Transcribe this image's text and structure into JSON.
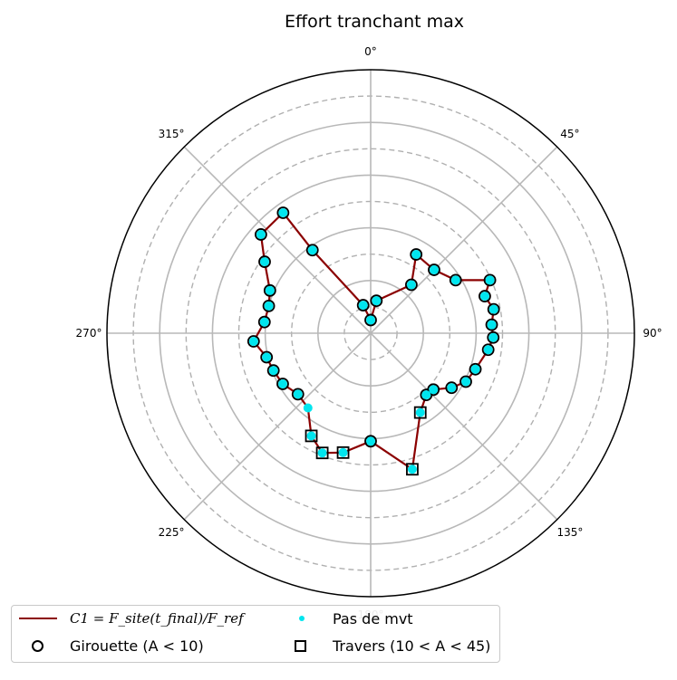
{
  "chart_data": {
    "type": "scatter",
    "projection": "polar",
    "title": "Effort tranchant max",
    "theta_direction": "clockwise",
    "theta_zero": "north",
    "theta_tick_labels": [
      "0°",
      "45°",
      "90°",
      "135°",
      "180°",
      "225°",
      "270°",
      "315°"
    ],
    "r_grid": {
      "solid": [
        0.4,
        0.8,
        1.2,
        1.6,
        2.0
      ],
      "dashed": [
        0.2,
        0.6,
        1.0,
        1.4,
        1.8
      ],
      "rmax": 2.0
    },
    "r_tick_labels_shown": false,
    "grid": true,
    "legend_placement": "bottom-left",
    "series": [
      {
        "name": "C1 = F_site(t_final)/F_ref",
        "kind": "line",
        "color": "#8b0000",
        "points": [
          {
            "theta": 0,
            "r": 0.1
          },
          {
            "theta": 10,
            "r": 0.25
          },
          {
            "theta": 40,
            "r": 0.48
          },
          {
            "theta": 30,
            "r": 0.69
          },
          {
            "theta": 45,
            "r": 0.68
          },
          {
            "theta": 58,
            "r": 0.76
          },
          {
            "theta": 66,
            "r": 0.99
          },
          {
            "theta": 72,
            "r": 0.91
          },
          {
            "theta": 79,
            "r": 0.95
          },
          {
            "theta": 86,
            "r": 0.92
          },
          {
            "theta": 92,
            "r": 0.93
          },
          {
            "theta": 98,
            "r": 0.9
          },
          {
            "theta": 109,
            "r": 0.84
          },
          {
            "theta": 117,
            "r": 0.81
          },
          {
            "theta": 124,
            "r": 0.74
          },
          {
            "theta": 132,
            "r": 0.64
          },
          {
            "theta": 138,
            "r": 0.63
          },
          {
            "theta": 148,
            "r": 0.71
          },
          {
            "theta": 163,
            "r": 1.08
          },
          {
            "theta": 180,
            "r": 0.82
          },
          {
            "theta": 193,
            "r": 0.93
          },
          {
            "theta": 202,
            "r": 0.98
          },
          {
            "theta": 210,
            "r": 0.9
          },
          {
            "theta": 220,
            "r": 0.74
          },
          {
            "theta": 230,
            "r": 0.72
          },
          {
            "theta": 240,
            "r": 0.77
          },
          {
            "theta": 249,
            "r": 0.79
          },
          {
            "theta": 257,
            "r": 0.81
          },
          {
            "theta": 266,
            "r": 0.89
          },
          {
            "theta": 276,
            "r": 0.81
          },
          {
            "theta": 285,
            "r": 0.8
          },
          {
            "theta": 293,
            "r": 0.83
          },
          {
            "theta": 304,
            "r": 0.97
          },
          {
            "theta": 312,
            "r": 1.12
          },
          {
            "theta": 324,
            "r": 1.13
          },
          {
            "theta": 325,
            "r": 0.77
          },
          {
            "theta": 345,
            "r": 0.22
          },
          {
            "theta": 0,
            "r": 0.1
          }
        ]
      },
      {
        "name": "Pas de mvt",
        "kind": "marker",
        "color": "#00e5ee",
        "points": [
          {
            "theta": 0,
            "r": 0.1
          },
          {
            "theta": 10,
            "r": 0.25
          },
          {
            "theta": 40,
            "r": 0.48
          },
          {
            "theta": 30,
            "r": 0.69
          },
          {
            "theta": 45,
            "r": 0.68
          },
          {
            "theta": 58,
            "r": 0.76
          },
          {
            "theta": 66,
            "r": 0.99
          },
          {
            "theta": 72,
            "r": 0.91
          },
          {
            "theta": 79,
            "r": 0.95
          },
          {
            "theta": 86,
            "r": 0.92
          },
          {
            "theta": 92,
            "r": 0.93
          },
          {
            "theta": 98,
            "r": 0.9
          },
          {
            "theta": 109,
            "r": 0.84
          },
          {
            "theta": 117,
            "r": 0.81
          },
          {
            "theta": 124,
            "r": 0.74
          },
          {
            "theta": 132,
            "r": 0.64
          },
          {
            "theta": 138,
            "r": 0.63
          },
          {
            "theta": 148,
            "r": 0.71
          },
          {
            "theta": 163,
            "r": 1.08
          },
          {
            "theta": 180,
            "r": 0.82
          },
          {
            "theta": 193,
            "r": 0.93
          },
          {
            "theta": 202,
            "r": 0.98
          },
          {
            "theta": 210,
            "r": 0.9
          },
          {
            "theta": 220,
            "r": 0.74
          },
          {
            "theta": 230,
            "r": 0.72
          },
          {
            "theta": 240,
            "r": 0.77
          },
          {
            "theta": 249,
            "r": 0.79
          },
          {
            "theta": 257,
            "r": 0.81
          },
          {
            "theta": 266,
            "r": 0.89
          },
          {
            "theta": 276,
            "r": 0.81
          },
          {
            "theta": 285,
            "r": 0.8
          },
          {
            "theta": 293,
            "r": 0.83
          },
          {
            "theta": 304,
            "r": 0.97
          },
          {
            "theta": 312,
            "r": 1.12
          },
          {
            "theta": 324,
            "r": 1.13
          },
          {
            "theta": 325,
            "r": 0.77
          },
          {
            "theta": 345,
            "r": 0.22
          }
        ]
      },
      {
        "name": "Girouette (A < 10)",
        "kind": "circle-outline",
        "color": "#000000",
        "points": [
          {
            "theta": 0,
            "r": 0.1
          },
          {
            "theta": 10,
            "r": 0.25
          },
          {
            "theta": 40,
            "r": 0.48
          },
          {
            "theta": 30,
            "r": 0.69
          },
          {
            "theta": 45,
            "r": 0.68
          },
          {
            "theta": 58,
            "r": 0.76
          },
          {
            "theta": 66,
            "r": 0.99
          },
          {
            "theta": 72,
            "r": 0.91
          },
          {
            "theta": 79,
            "r": 0.95
          },
          {
            "theta": 86,
            "r": 0.92
          },
          {
            "theta": 92,
            "r": 0.93
          },
          {
            "theta": 98,
            "r": 0.9
          },
          {
            "theta": 109,
            "r": 0.84
          },
          {
            "theta": 117,
            "r": 0.81
          },
          {
            "theta": 124,
            "r": 0.74
          },
          {
            "theta": 132,
            "r": 0.64
          },
          {
            "theta": 138,
            "r": 0.63
          },
          {
            "theta": 180,
            "r": 0.82
          },
          {
            "theta": 230,
            "r": 0.72
          },
          {
            "theta": 240,
            "r": 0.77
          },
          {
            "theta": 249,
            "r": 0.79
          },
          {
            "theta": 257,
            "r": 0.81
          },
          {
            "theta": 266,
            "r": 0.89
          },
          {
            "theta": 276,
            "r": 0.81
          },
          {
            "theta": 285,
            "r": 0.8
          },
          {
            "theta": 293,
            "r": 0.83
          },
          {
            "theta": 304,
            "r": 0.97
          },
          {
            "theta": 312,
            "r": 1.12
          },
          {
            "theta": 324,
            "r": 1.13
          },
          {
            "theta": 325,
            "r": 0.77
          },
          {
            "theta": 345,
            "r": 0.22
          }
        ]
      },
      {
        "name": "Travers (10 < A < 45)",
        "kind": "square-outline",
        "color": "#000000",
        "points": [
          {
            "theta": 148,
            "r": 0.71
          },
          {
            "theta": 163,
            "r": 1.08
          },
          {
            "theta": 193,
            "r": 0.93
          },
          {
            "theta": 202,
            "r": 0.98
          },
          {
            "theta": 210,
            "r": 0.9
          }
        ]
      }
    ]
  },
  "legend": {
    "line_formula": "C1 = F_site(t_final)/F_ref",
    "cyan_label": "Pas de mvt",
    "circle_label": "Girouette (A < 10)",
    "square_label": "Travers (10 < A < 45)"
  }
}
